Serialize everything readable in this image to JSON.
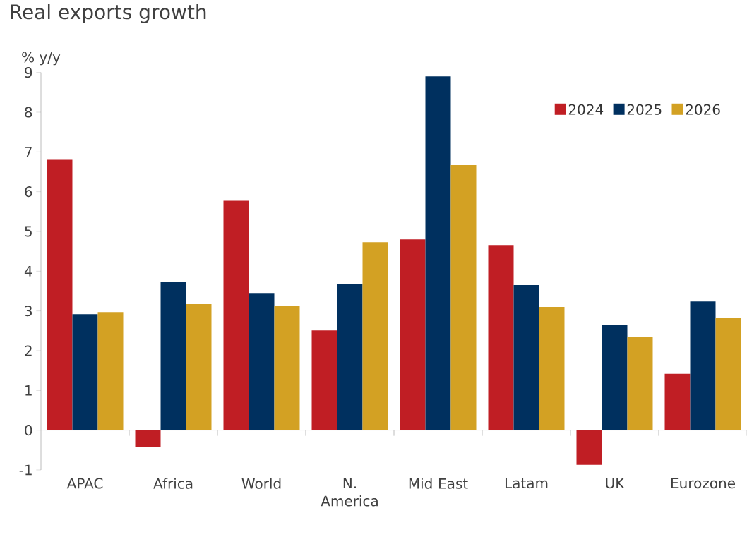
{
  "chart_data": {
    "type": "bar",
    "title": "Real exports growth",
    "ylabel": "% y/y",
    "categories": [
      "APAC",
      "Africa",
      "World",
      "N. America",
      "Mid East",
      "Latam",
      "UK",
      "Eurozone"
    ],
    "series": [
      {
        "name": "2024",
        "color": "#c01e24",
        "values": [
          6.8,
          -0.43,
          5.77,
          2.51,
          4.8,
          4.66,
          -0.87,
          1.42
        ]
      },
      {
        "name": "2025",
        "color": "#00305f",
        "values": [
          2.92,
          3.72,
          3.45,
          3.68,
          8.9,
          3.65,
          2.65,
          3.24
        ]
      },
      {
        "name": "2026",
        "color": "#d3a123",
        "values": [
          2.97,
          3.17,
          3.13,
          4.73,
          6.67,
          3.1,
          2.35,
          2.83
        ]
      }
    ],
    "ylim": [
      -1,
      9
    ],
    "yticks": [
      -1,
      0,
      1,
      2,
      3,
      4,
      5,
      6,
      7,
      8,
      9
    ],
    "legend": "top right"
  }
}
